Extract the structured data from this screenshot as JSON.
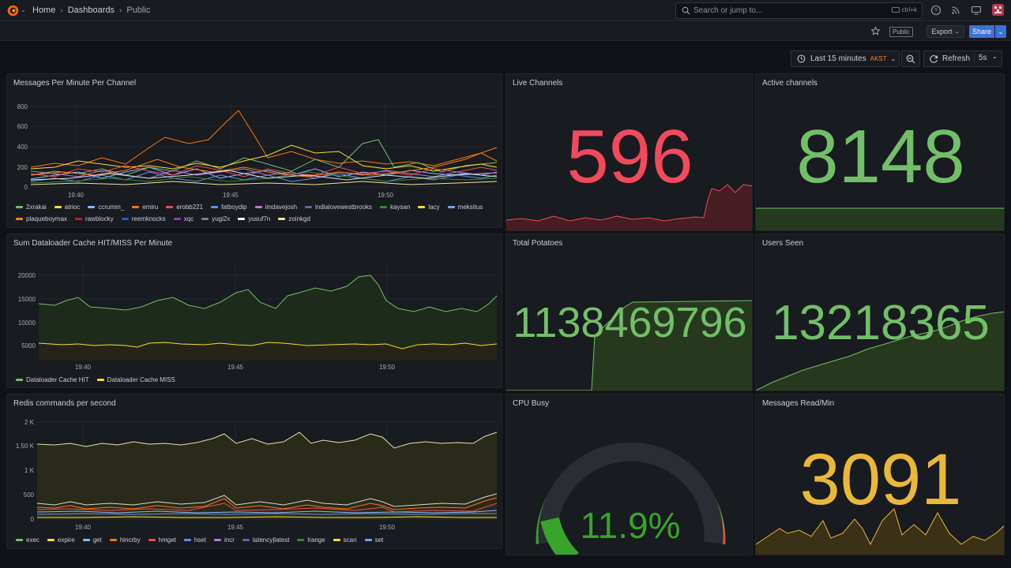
{
  "nav": {
    "breadcrumbs": [
      "Home",
      "Dashboards",
      "Public"
    ],
    "search_placeholder": "Search or jump to...",
    "search_shortcut": "ctrl+k"
  },
  "toolbar": {
    "public_badge": "Public",
    "export_label": "Export",
    "share_label": "Share",
    "time_range": "Last 15 minutes",
    "timezone": "AKST",
    "refresh_label": "Refresh",
    "refresh_interval": "5s"
  },
  "colors": {
    "red": "#f2495c",
    "green": "#73bf69",
    "yellow": "#fade2a",
    "orange": "#ff9830",
    "blue": "#5794f2",
    "purple": "#b877d9",
    "gold": "#eab839"
  },
  "panels": {
    "messages_per_minute": {
      "title": "Messages Per Minute Per Channel",
      "y_ticks": [
        "800",
        "600",
        "400",
        "200",
        "0"
      ],
      "x_ticks": [
        "19:40",
        "19:45",
        "19:50"
      ],
      "legend": [
        {
          "name": "2xrakai",
          "color": "#73bf69"
        },
        {
          "name": "atrioc",
          "color": "#fade2a"
        },
        {
          "name": "ccrumm_",
          "color": "#8ab8ff"
        },
        {
          "name": "emiru",
          "color": "#ff780a"
        },
        {
          "name": "erobb221",
          "color": "#f2495c"
        },
        {
          "name": "fatboydip",
          "color": "#5794f2"
        },
        {
          "name": "imdavejosh",
          "color": "#b877d9"
        },
        {
          "name": "indialovewestbrooks",
          "color": "#705da0"
        },
        {
          "name": "kaysan",
          "color": "#37872d"
        },
        {
          "name": "lacy",
          "color": "#fade2a"
        },
        {
          "name": "meksitus",
          "color": "#6ea4f4"
        },
        {
          "name": "plaqueboymax",
          "color": "#ff7f0e"
        },
        {
          "name": "rawblocky",
          "color": "#c4162a"
        },
        {
          "name": "reemknocks",
          "color": "#1f60c4"
        },
        {
          "name": "xqc",
          "color": "#8f3bb8"
        },
        {
          "name": "yugi2x",
          "color": "#7f7f7f"
        },
        {
          "name": "yusuf7n",
          "color": "#ffffff"
        },
        {
          "name": "zoinkgd",
          "color": "#f9e2a1"
        }
      ]
    },
    "live_channels": {
      "title": "Live Channels",
      "value": "596",
      "color": "#f2495c"
    },
    "active_channels": {
      "title": "Active channels",
      "value": "8148",
      "color": "#73bf69"
    },
    "dataloader": {
      "title": "Sum Dataloader Cache HIT/MISS Per Minute",
      "y_ticks": [
        "20000",
        "15000",
        "10000",
        "5000"
      ],
      "x_ticks": [
        "19:40",
        "19:45",
        "19:50"
      ],
      "legend": [
        {
          "name": "Dataloader Cache HIT",
          "color": "#73bf69"
        },
        {
          "name": "Dataloader Cache MISS",
          "color": "#fade2a"
        }
      ]
    },
    "total_potatoes": {
      "title": "Total Potatoes",
      "value": "1138469796",
      "color": "#73bf69"
    },
    "users_seen": {
      "title": "Users Seen",
      "value": "13218365",
      "color": "#73bf69"
    },
    "redis": {
      "title": "Redis commands per second",
      "y_ticks": [
        "2 K",
        "1.50 K",
        "1 K",
        "500",
        "0"
      ],
      "x_ticks": [
        "19:40",
        "19:45",
        "19:50"
      ],
      "legend": [
        {
          "name": "exec",
          "color": "#73bf69"
        },
        {
          "name": "expire",
          "color": "#fade2a"
        },
        {
          "name": "get",
          "color": "#8ab8ff"
        },
        {
          "name": "hincrby",
          "color": "#ff780a"
        },
        {
          "name": "hmget",
          "color": "#f2495c"
        },
        {
          "name": "hset",
          "color": "#5794f2"
        },
        {
          "name": "incr",
          "color": "#b877d9"
        },
        {
          "name": "latency|latest",
          "color": "#705da0"
        },
        {
          "name": "lrange",
          "color": "#37872d"
        },
        {
          "name": "scan",
          "color": "#fade2a"
        },
        {
          "name": "set",
          "color": "#6ea4f4"
        }
      ]
    },
    "cpu_busy": {
      "title": "CPU Busy",
      "value": "11.9%",
      "percent": 11.9,
      "color": "#37a42c"
    },
    "messages_read": {
      "title": "Messages Read/Min",
      "value": "3091",
      "color": "#eab839"
    }
  }
}
